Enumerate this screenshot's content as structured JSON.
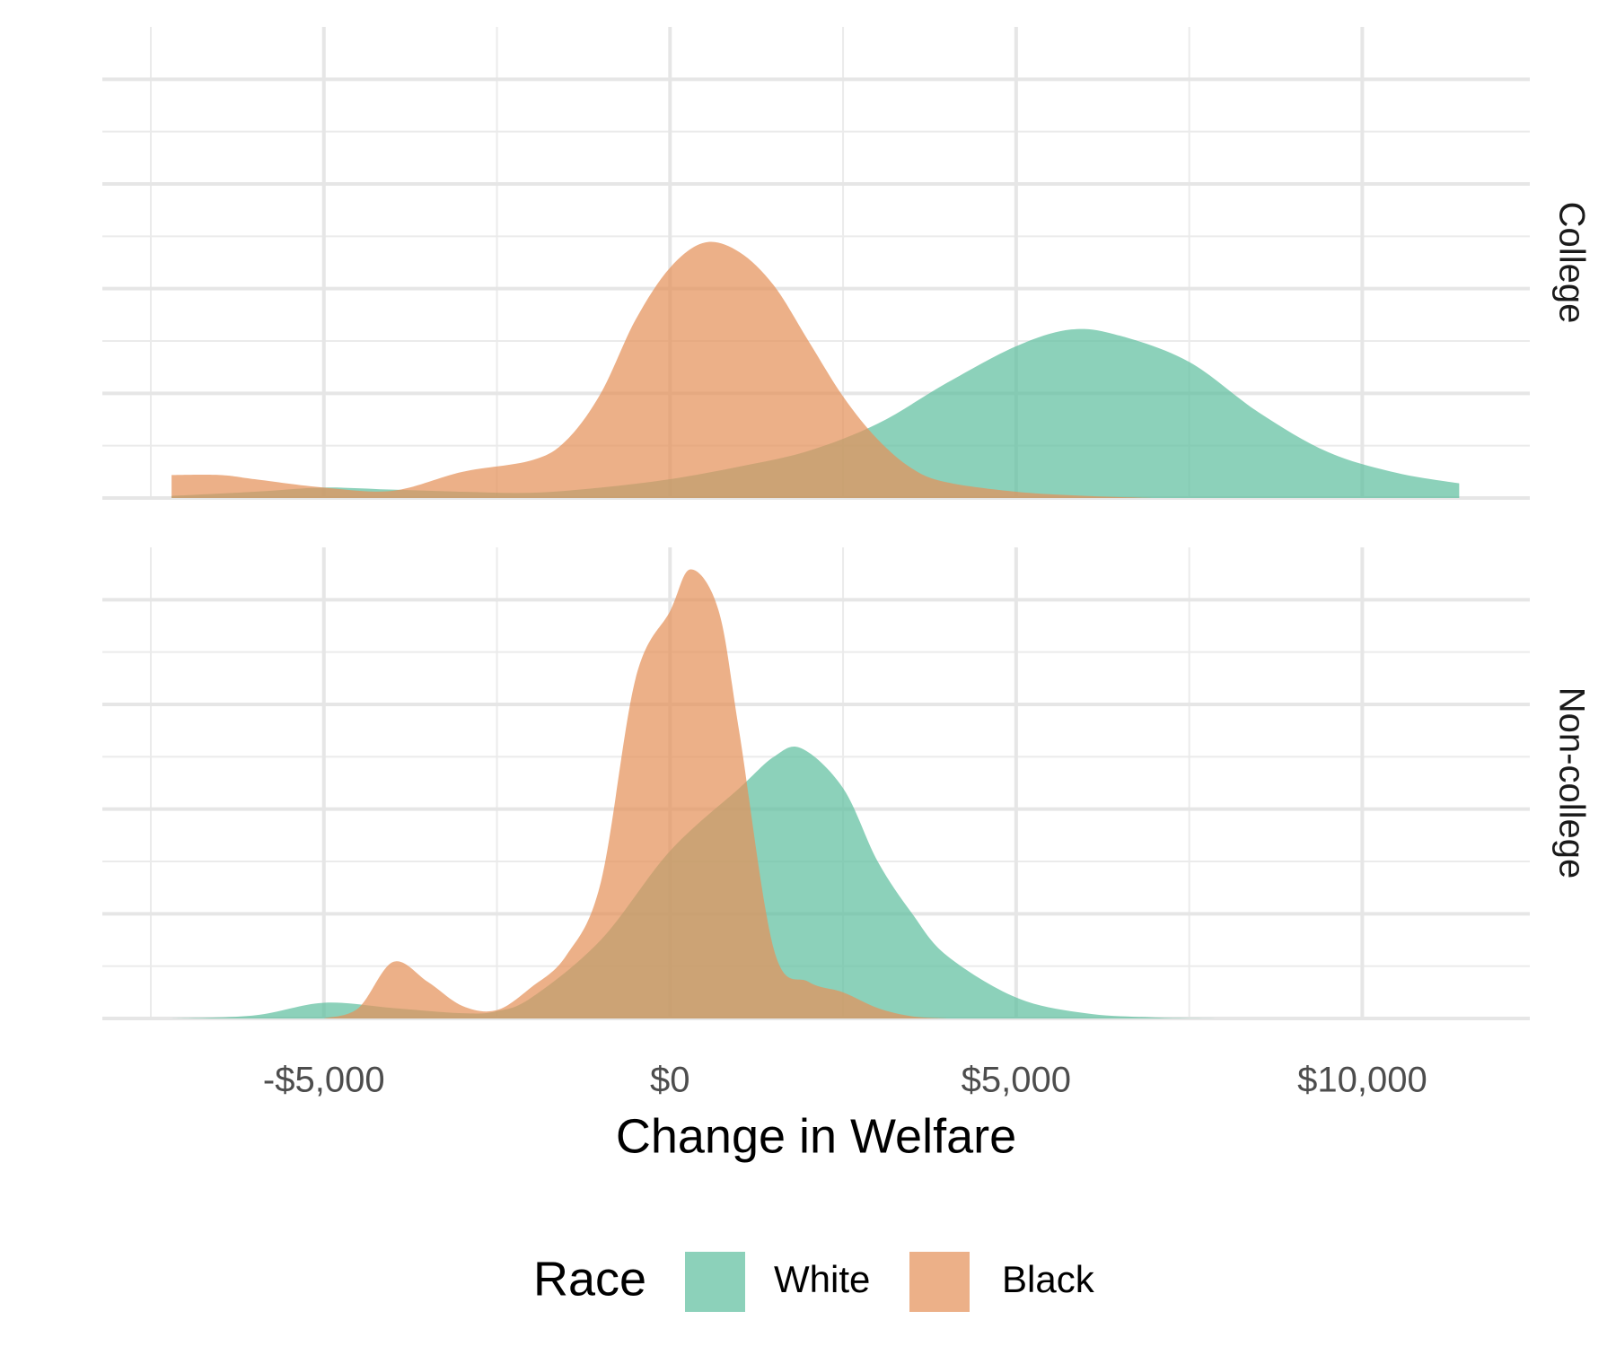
{
  "chart_data": {
    "type": "density",
    "x_label": "Change in Welfare",
    "legend_title": "Race",
    "legend_position": "bottom",
    "grid": true,
    "opacity": 0.72,
    "xlim": [
      -8200,
      12420
    ],
    "xticks": [
      {
        "value": -5000,
        "label": "-$5,000"
      },
      {
        "value": 0,
        "label": "$0"
      },
      {
        "value": 5000,
        "label": "$5,000"
      },
      {
        "value": 10000,
        "label": "$10,000"
      }
    ],
    "x_minor_ticks": [
      -7500,
      -2500,
      2500,
      7500
    ],
    "ylim": [
      0,
      4.5
    ],
    "yticks": [
      0,
      1,
      2,
      3,
      4
    ],
    "y_minor_ticks": [
      0.5,
      1.5,
      2.5,
      3.5
    ],
    "facets": [
      "College",
      "Non-college"
    ],
    "series": [
      {
        "name": "White",
        "color": "#5fbf9f",
        "facets": [
          {
            "x": [
              -7200,
              -6000,
              -5000,
              -4000,
              -3000,
              -2000,
              -1000,
              0,
              1000,
              2000,
              3000,
              4000,
              5000,
              5800,
              6500,
              7500,
              8500,
              9500,
              10500,
              11400
            ],
            "values": [
              0.02,
              0.06,
              0.1,
              0.08,
              0.06,
              0.05,
              0.1,
              0.18,
              0.3,
              0.45,
              0.71,
              1.1,
              1.45,
              1.61,
              1.55,
              1.3,
              0.82,
              0.44,
              0.24,
              0.14
            ]
          },
          {
            "x": [
              -7200,
              -6000,
              -5000,
              -4000,
              -3000,
              -2500,
              -2000,
              -1000,
              0,
              1000,
              1500,
              1900,
              2500,
              3000,
              3500,
              4000,
              5000,
              6000,
              7000,
              8000
            ],
            "values": [
              0,
              0.03,
              0.15,
              0.1,
              0.05,
              0.07,
              0.2,
              0.75,
              1.6,
              2.2,
              2.5,
              2.58,
              2.2,
              1.5,
              1.0,
              0.6,
              0.2,
              0.05,
              0.01,
              0
            ]
          }
        ]
      },
      {
        "name": "Black",
        "color": "#e5925a",
        "facets": [
          {
            "x": [
              -7200,
              -6500,
              -6000,
              -5000,
              -4000,
              -3000,
              -2000,
              -1500,
              -1000,
              -500,
              0,
              500,
              1000,
              1500,
              2000,
              2500,
              3000,
              3500,
              4000,
              5000,
              6000,
              7000
            ],
            "values": [
              0.22,
              0.22,
              0.18,
              0.1,
              0.07,
              0.25,
              0.36,
              0.55,
              1.0,
              1.7,
              2.2,
              2.44,
              2.35,
              2.03,
              1.5,
              0.97,
              0.56,
              0.28,
              0.15,
              0.06,
              0.02,
              0
            ]
          },
          {
            "x": [
              -5000,
              -4500,
              -4000,
              -3500,
              -3000,
              -2500,
              -2000,
              -1500,
              -1000,
              -500,
              0,
              300,
              700,
              1000,
              1500,
              2000,
              2500,
              3000,
              3500,
              4000
            ],
            "values": [
              0,
              0.1,
              0.54,
              0.35,
              0.12,
              0.08,
              0.3,
              0.6,
              1.3,
              3.24,
              3.89,
              4.29,
              3.9,
              2.74,
              0.66,
              0.35,
              0.25,
              0.1,
              0.02,
              0
            ]
          }
        ]
      }
    ]
  }
}
